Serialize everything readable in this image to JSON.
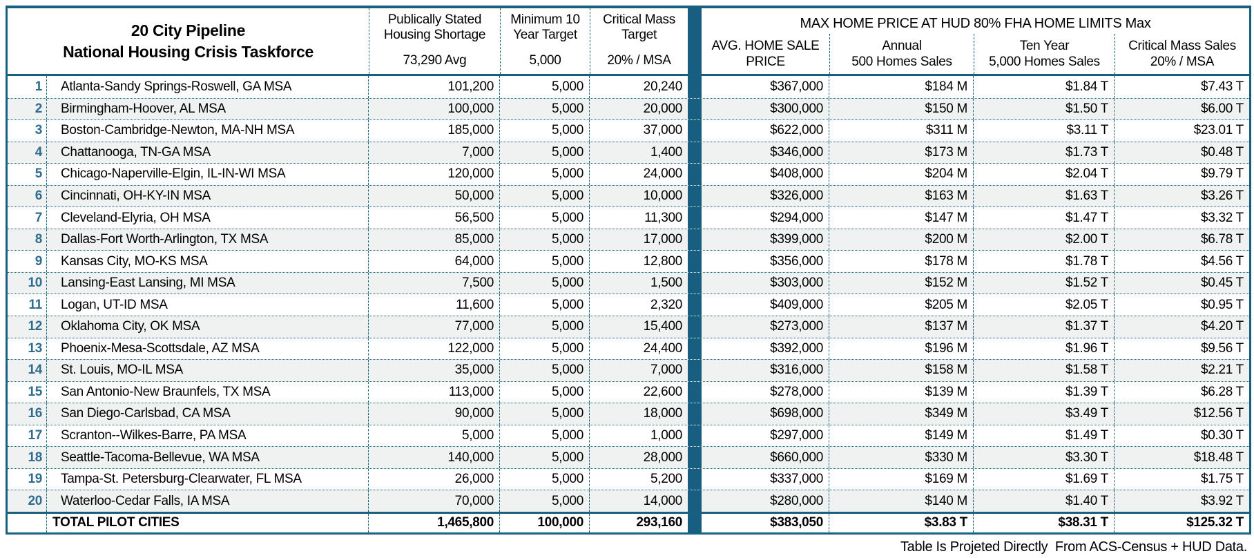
{
  "table": {
    "title_line1": "20 City Pipeline",
    "title_line2": "National Housing Crisis Taskforce",
    "left_columns": [
      {
        "line1": "Publically Stated",
        "line2": "Housing Shortage",
        "value": "73,290 Avg"
      },
      {
        "line1": "Minimum 10",
        "line2": "Year Target",
        "value": "5,000"
      },
      {
        "line1": "Critical Mass",
        "line2": "Target",
        "value": "20% / MSA"
      }
    ],
    "right_group_title": "MAX HOME PRICE AT HUD 80% FHA HOME LIMITS Max",
    "right_columns": [
      {
        "line1": "AVG. HOME SALE",
        "line2": "PRICE"
      },
      {
        "line1": "Annual",
        "line2": "500 Homes Sales"
      },
      {
        "line1": "Ten Year",
        "line2": "5,000 Homes Sales"
      },
      {
        "line1": "Critical Mass Sales",
        "line2": "20% / MSA"
      }
    ],
    "rows": [
      {
        "num": "1",
        "city": "Atlanta-Sandy Springs-Roswell, GA MSA",
        "shortage": "101,200",
        "target": "5,000",
        "critical_mass": "20,240",
        "avg_price": "$367,000",
        "annual": "$184 M",
        "ten_year": "$1.84 T",
        "critical_sales": "$7.43 T"
      },
      {
        "num": "2",
        "city": "Birmingham-Hoover, AL MSA",
        "shortage": "100,000",
        "target": "5,000",
        "critical_mass": "20,000",
        "avg_price": "$300,000",
        "annual": "$150 M",
        "ten_year": "$1.50 T",
        "critical_sales": "$6.00 T"
      },
      {
        "num": "3",
        "city": "Boston-Cambridge-Newton, MA-NH MSA",
        "shortage": "185,000",
        "target": "5,000",
        "critical_mass": "37,000",
        "avg_price": "$622,000",
        "annual": "$311 M",
        "ten_year": "$3.11 T",
        "critical_sales": "$23.01 T"
      },
      {
        "num": "4",
        "city": "Chattanooga, TN-GA MSA",
        "shortage": "7,000",
        "target": "5,000",
        "critical_mass": "1,400",
        "avg_price": "$346,000",
        "annual": "$173 M",
        "ten_year": "$1.73 T",
        "critical_sales": "$0.48 T"
      },
      {
        "num": "5",
        "city": "Chicago-Naperville-Elgin, IL-IN-WI MSA",
        "shortage": "120,000",
        "target": "5,000",
        "critical_mass": "24,000",
        "avg_price": "$408,000",
        "annual": "$204 M",
        "ten_year": "$2.04 T",
        "critical_sales": "$9.79 T"
      },
      {
        "num": "6",
        "city": "Cincinnati, OH-KY-IN MSA",
        "shortage": "50,000",
        "target": "5,000",
        "critical_mass": "10,000",
        "avg_price": "$326,000",
        "annual": "$163 M",
        "ten_year": "$1.63 T",
        "critical_sales": "$3.26 T"
      },
      {
        "num": "7",
        "city": "Cleveland-Elyria, OH MSA",
        "shortage": "56,500",
        "target": "5,000",
        "critical_mass": "11,300",
        "avg_price": "$294,000",
        "annual": "$147 M",
        "ten_year": "$1.47 T",
        "critical_sales": "$3.32 T"
      },
      {
        "num": "8",
        "city": "Dallas-Fort Worth-Arlington, TX MSA",
        "shortage": "85,000",
        "target": "5,000",
        "critical_mass": "17,000",
        "avg_price": "$399,000",
        "annual": "$200 M",
        "ten_year": "$2.00 T",
        "critical_sales": "$6.78 T"
      },
      {
        "num": "9",
        "city": "Kansas City, MO-KS MSA",
        "shortage": "64,000",
        "target": "5,000",
        "critical_mass": "12,800",
        "avg_price": "$356,000",
        "annual": "$178 M",
        "ten_year": "$1.78 T",
        "critical_sales": "$4.56 T"
      },
      {
        "num": "10",
        "city": "Lansing-East Lansing, MI MSA",
        "shortage": "7,500",
        "target": "5,000",
        "critical_mass": "1,500",
        "avg_price": "$303,000",
        "annual": "$152 M",
        "ten_year": "$1.52 T",
        "critical_sales": "$0.45 T"
      },
      {
        "num": "11",
        "city": "Logan, UT-ID MSA",
        "shortage": "11,600",
        "target": "5,000",
        "critical_mass": "2,320",
        "avg_price": "$409,000",
        "annual": "$205 M",
        "ten_year": "$2.05 T",
        "critical_sales": "$0.95 T"
      },
      {
        "num": "12",
        "city": "Oklahoma City, OK MSA",
        "shortage": "77,000",
        "target": "5,000",
        "critical_mass": "15,400",
        "avg_price": "$273,000",
        "annual": "$137 M",
        "ten_year": "$1.37 T",
        "critical_sales": "$4.20 T"
      },
      {
        "num": "13",
        "city": "Phoenix-Mesa-Scottsdale, AZ MSA",
        "shortage": "122,000",
        "target": "5,000",
        "critical_mass": "24,400",
        "avg_price": "$392,000",
        "annual": "$196 M",
        "ten_year": "$1.96 T",
        "critical_sales": "$9.56 T"
      },
      {
        "num": "14",
        "city": "St. Louis, MO-IL MSA",
        "shortage": "35,000",
        "target": "5,000",
        "critical_mass": "7,000",
        "avg_price": "$316,000",
        "annual": "$158 M",
        "ten_year": "$1.58 T",
        "critical_sales": "$2.21 T"
      },
      {
        "num": "15",
        "city": "San Antonio-New Braunfels, TX MSA",
        "shortage": "113,000",
        "target": "5,000",
        "critical_mass": "22,600",
        "avg_price": "$278,000",
        "annual": "$139 M",
        "ten_year": "$1.39 T",
        "critical_sales": "$6.28 T"
      },
      {
        "num": "16",
        "city": "San Diego-Carlsbad, CA MSA",
        "shortage": "90,000",
        "target": "5,000",
        "critical_mass": "18,000",
        "avg_price": "$698,000",
        "annual": "$349 M",
        "ten_year": "$3.49 T",
        "critical_sales": "$12.56 T"
      },
      {
        "num": "17",
        "city": "Scranton--Wilkes-Barre, PA MSA",
        "shortage": "5,000",
        "target": "5,000",
        "critical_mass": "1,000",
        "avg_price": "$297,000",
        "annual": "$149 M",
        "ten_year": "$1.49 T",
        "critical_sales": "$0.30 T"
      },
      {
        "num": "18",
        "city": "Seattle-Tacoma-Bellevue, WA MSA",
        "shortage": "140,000",
        "target": "5,000",
        "critical_mass": "28,000",
        "avg_price": "$660,000",
        "annual": "$330 M",
        "ten_year": "$3.30 T",
        "critical_sales": "$18.48 T"
      },
      {
        "num": "19",
        "city": "Tampa-St. Petersburg-Clearwater, FL MSA",
        "shortage": "26,000",
        "target": "5,000",
        "critical_mass": "5,200",
        "avg_price": "$337,000",
        "annual": "$169 M",
        "ten_year": "$1.69 T",
        "critical_sales": "$1.75 T"
      },
      {
        "num": "20",
        "city": "Waterloo-Cedar Falls, IA MSA",
        "shortage": "70,000",
        "target": "5,000",
        "critical_mass": "14,000",
        "avg_price": "$280,000",
        "annual": "$140 M",
        "ten_year": "$1.40 T",
        "critical_sales": "$3.92 T"
      }
    ],
    "total": {
      "label": "TOTAL PILOT CITIES",
      "shortage": "1,465,800",
      "target": "100,000",
      "critical_mass": "293,160",
      "avg_price": "$383,050",
      "annual": "$3.83 T",
      "ten_year": "$38.31 T",
      "critical_sales": "$125.32 T"
    },
    "footnote": "Table Is Projeted Directly  From ACS-Census + HUD Data.",
    "colors": {
      "accent_teal": "#175e80",
      "row_number_blue": "#2e6d8e",
      "stripe_gray": "#f0f1f1"
    }
  }
}
